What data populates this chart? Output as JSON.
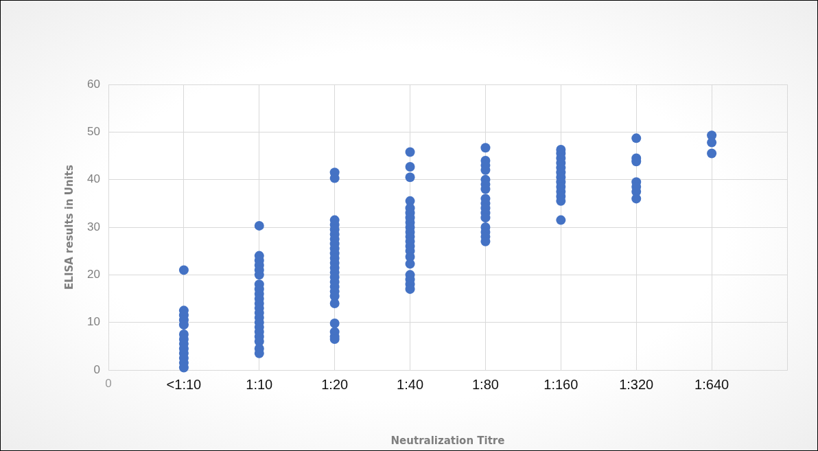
{
  "chart_data": {
    "type": "scatter",
    "xlabel": "Neutralization Titre",
    "ylabel": "ELISA results in Units",
    "categories": [
      "0",
      "<1:10",
      "1:10",
      "1:20",
      "1:40",
      "1:80",
      "1:160",
      "1:320",
      "1:640",
      null
    ],
    "ylim": [
      0,
      60
    ],
    "yticks": [
      0,
      10,
      20,
      30,
      40,
      50,
      60
    ],
    "grid": true,
    "marker": "circle",
    "series": [
      {
        "color": "#4472c4",
        "x": [
          "<1:10",
          "<1:10",
          "<1:10",
          "<1:10",
          "<1:10",
          "<1:10",
          "<1:10",
          "<1:10",
          "<1:10",
          "<1:10",
          "<1:10",
          "<1:10",
          "<1:10",
          "1:10",
          "1:10",
          "1:10",
          "1:10",
          "1:10",
          "1:10",
          "1:10",
          "1:10",
          "1:10",
          "1:10",
          "1:10",
          "1:10",
          "1:10",
          "1:10",
          "1:10",
          "1:10",
          "1:10",
          "1:10",
          "1:10",
          "1:10",
          "1:10",
          "1:20",
          "1:20",
          "1:20",
          "1:20",
          "1:20",
          "1:20",
          "1:20",
          "1:20",
          "1:20",
          "1:20",
          "1:20",
          "1:20",
          "1:20",
          "1:20",
          "1:20",
          "1:20",
          "1:20",
          "1:20",
          "1:20",
          "1:20",
          "1:20",
          "1:20",
          "1:20",
          "1:20",
          "1:40",
          "1:40",
          "1:40",
          "1:40",
          "1:40",
          "1:40",
          "1:40",
          "1:40",
          "1:40",
          "1:40",
          "1:40",
          "1:40",
          "1:40",
          "1:40",
          "1:40",
          "1:40",
          "1:40",
          "1:40",
          "1:40",
          "1:40",
          "1:80",
          "1:80",
          "1:80",
          "1:80",
          "1:80",
          "1:80",
          "1:80",
          "1:80",
          "1:80",
          "1:80",
          "1:80",
          "1:80",
          "1:80",
          "1:80",
          "1:80",
          "1:80",
          "1:160",
          "1:160",
          "1:160",
          "1:160",
          "1:160",
          "1:160",
          "1:160",
          "1:160",
          "1:160",
          "1:160",
          "1:160",
          "1:160",
          "1:160",
          "1:320",
          "1:320",
          "1:320",
          "1:320",
          "1:320",
          "1:320",
          "1:320",
          "1:640",
          "1:640",
          "1:640"
        ],
        "values": [
          21,
          12.5,
          11.5,
          10.5,
          9.5,
          7.5,
          6.5,
          5.5,
          4.5,
          3.5,
          2.5,
          1.5,
          0.5,
          30.3,
          24,
          23,
          22,
          21,
          20,
          18,
          17,
          16,
          15,
          14,
          13,
          12,
          11,
          10,
          9,
          8,
          7,
          6,
          4.5,
          3.5,
          41.5,
          40.3,
          31.5,
          30.5,
          29.5,
          28.5,
          27.5,
          26.5,
          25.5,
          24.5,
          23.5,
          22.5,
          21.5,
          20.5,
          19.5,
          18.5,
          17.5,
          16.5,
          15.5,
          14,
          9.8,
          8,
          7,
          6.5,
          45.8,
          42.7,
          40.5,
          35.5,
          34,
          33,
          32,
          31,
          30,
          29,
          28,
          27,
          26,
          25,
          23.8,
          22.3,
          20,
          19,
          18,
          17,
          46.7,
          44,
          43,
          42,
          40,
          39,
          38,
          36,
          35,
          34,
          33,
          32,
          30,
          29,
          28,
          27,
          46.3,
          45.5,
          44.5,
          43.5,
          42.5,
          41.5,
          40.5,
          39.5,
          38.5,
          37.5,
          36.5,
          35.5,
          31.5,
          48.7,
          44.5,
          43.8,
          39.5,
          38.5,
          37.5,
          36,
          49.3,
          47.8,
          45.5
        ]
      }
    ]
  }
}
